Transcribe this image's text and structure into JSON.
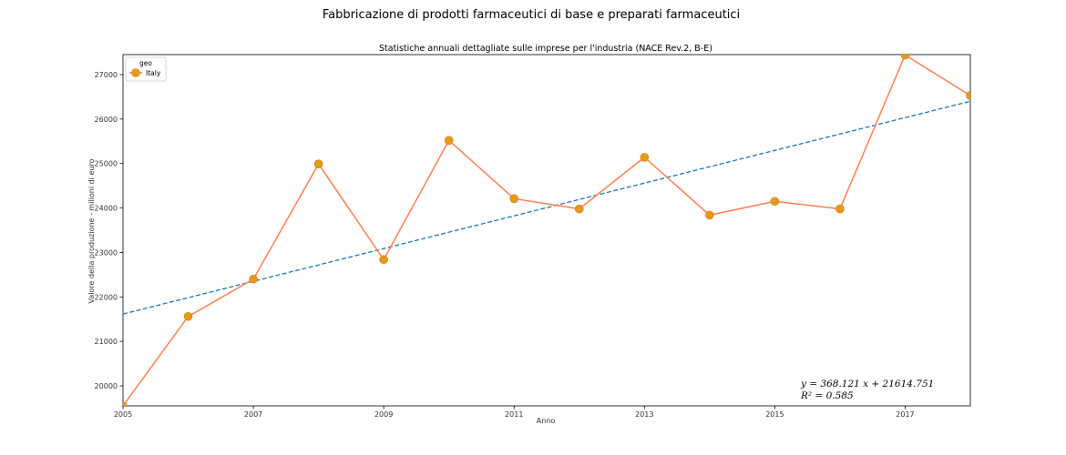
{
  "page": {
    "suptitle": "Fabbricazione di prodotti farmaceutici di base e preparati farmaceutici"
  },
  "chart_data": {
    "type": "line",
    "title": "Statistiche annuali dettagliate sulle imprese per l'industria (NACE Rev.2, B-E)",
    "xlabel": "Anno",
    "ylabel": "Valore della produzione - milioni di euro",
    "xlim": [
      2005,
      2018
    ],
    "ylim": [
      19550,
      27450
    ],
    "x_ticks": [
      2005,
      2007,
      2009,
      2011,
      2013,
      2015,
      2017
    ],
    "y_ticks": [
      20000,
      21000,
      22000,
      23000,
      24000,
      25000,
      26000,
      27000
    ],
    "grid": false,
    "legend": {
      "title": "geo",
      "position": "top-left"
    },
    "series": [
      {
        "name": "Italy",
        "color": "#ff7f50",
        "marker_color": "#e69a1c",
        "x": [
          2005,
          2006,
          2007,
          2008,
          2009,
          2010,
          2011,
          2012,
          2013,
          2014,
          2015,
          2016,
          2017,
          2018
        ],
        "values": [
          19550,
          21560,
          22400,
          24990,
          22840,
          25520,
          24210,
          23980,
          25140,
          23840,
          24150,
          23980,
          27440,
          26530
        ]
      }
    ],
    "trendline": {
      "color": "#1f77b4",
      "style": "dashed",
      "slope": 368.121,
      "intercept": 21614.751,
      "equation_text": "y = 368.121 x + 21614.751",
      "r2_text": "R² = 0.585"
    }
  }
}
